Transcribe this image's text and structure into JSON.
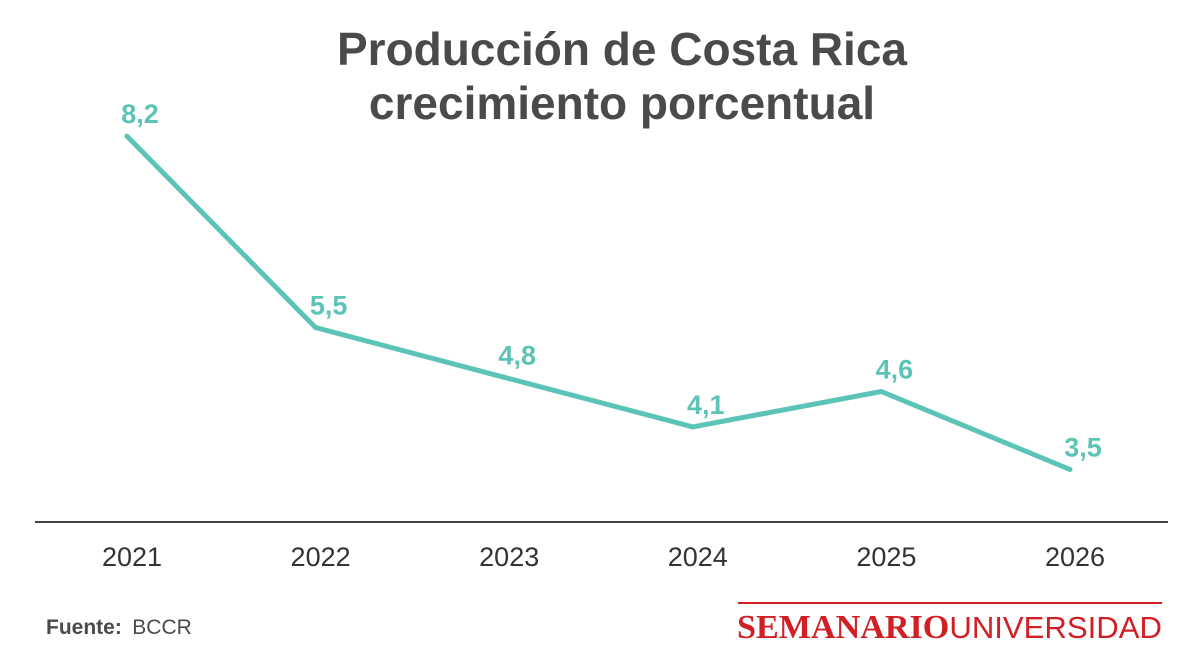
{
  "chart_data": {
    "type": "line",
    "title_lines": [
      "Producción de Costa Rica",
      "crecimiento porcentual"
    ],
    "categories": [
      "2021",
      "2022",
      "2023",
      "2024",
      "2025",
      "2026"
    ],
    "data_labels": [
      "8,2",
      "5,5",
      "4,8",
      "4,1",
      "4,6",
      "3,5"
    ],
    "series": [
      {
        "values": [
          8.2,
          5.5,
          4.8,
          4.1,
          4.6,
          3.5
        ]
      }
    ],
    "ylim": [
      2.9,
      8.4
    ],
    "grid": false,
    "line_color": "#5cc4b6",
    "axis_color": "#444444"
  },
  "footer": {
    "source_label": "Fuente:",
    "source_value": "BCCR",
    "logo_part1": "SEMANARIO",
    "logo_part2": "UNIVERSIDAD",
    "logo_color": "#d11f26"
  }
}
